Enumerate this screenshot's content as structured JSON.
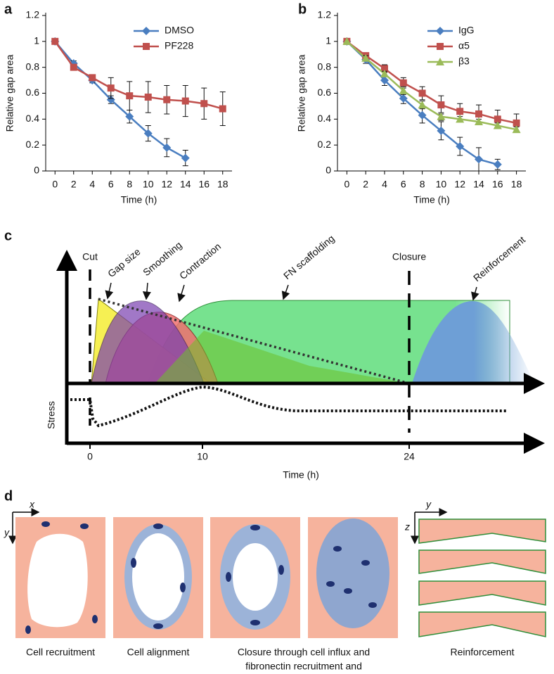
{
  "panel_labels": [
    "a",
    "b",
    "c",
    "d"
  ],
  "chart_data": [
    {
      "type": "line",
      "xlabel": "Time (h)",
      "ylabel": "Relative gap area",
      "xlim": [
        -1,
        19
      ],
      "xticks": [
        0,
        2,
        4,
        6,
        8,
        10,
        12,
        14,
        16,
        18
      ],
      "ylim": [
        0,
        1.2
      ],
      "yticks": [
        0,
        0.2,
        0.4,
        0.6,
        0.8,
        1,
        1.2
      ],
      "legend": "upper right",
      "series": [
        {
          "name": "DMSO",
          "color": "#4a7ec0",
          "marker": "diamond",
          "x": [
            0,
            2,
            4,
            6,
            8,
            10,
            12,
            14
          ],
          "values": [
            1,
            0.83,
            0.7,
            0.55,
            0.42,
            0.29,
            0.18,
            0.1
          ],
          "errors": [
            0,
            0.02,
            0.02,
            0.03,
            0.05,
            0.06,
            0.07,
            0.06
          ]
        },
        {
          "name": "PF228",
          "color": "#c0504d",
          "marker": "square",
          "x": [
            0,
            2,
            4,
            6,
            8,
            10,
            12,
            14,
            16,
            18
          ],
          "values": [
            1,
            0.8,
            0.72,
            0.64,
            0.58,
            0.57,
            0.55,
            0.54,
            0.52,
            0.48
          ],
          "errors": [
            0,
            0.02,
            0.02,
            0.08,
            0.11,
            0.12,
            0.11,
            0.12,
            0.12,
            0.13
          ]
        }
      ]
    },
    {
      "type": "line",
      "xlabel": "Time (h)",
      "ylabel": "Relative gap area",
      "xlim": [
        -1,
        19
      ],
      "xticks": [
        0,
        2,
        4,
        6,
        8,
        10,
        12,
        14,
        16,
        18
      ],
      "ylim": [
        0,
        1.2
      ],
      "yticks": [
        0,
        0.2,
        0.4,
        0.6,
        0.8,
        1,
        1.2
      ],
      "legend": "upper right",
      "series": [
        {
          "name": "IgG",
          "color": "#4a7ec0",
          "marker": "diamond",
          "x": [
            0,
            2,
            4,
            6,
            8,
            10,
            12,
            14,
            16
          ],
          "values": [
            1,
            0.86,
            0.7,
            0.56,
            0.43,
            0.31,
            0.19,
            0.09,
            0.05
          ],
          "errors": [
            0,
            0.03,
            0.04,
            0.04,
            0.06,
            0.07,
            0.07,
            0.09,
            0.04
          ]
        },
        {
          "name": "α5",
          "color": "#c0504d",
          "marker": "square",
          "x": [
            0,
            2,
            4,
            6,
            8,
            10,
            12,
            14,
            16,
            18
          ],
          "values": [
            1,
            0.89,
            0.79,
            0.68,
            0.6,
            0.51,
            0.46,
            0.44,
            0.4,
            0.37
          ],
          "errors": [
            0,
            0.02,
            0.03,
            0.04,
            0.05,
            0.07,
            0.06,
            0.07,
            0.07,
            0.07
          ]
        },
        {
          "name": "β3",
          "color": "#9bbb59",
          "marker": "triangle",
          "x": [
            0,
            2,
            4,
            6,
            8,
            10,
            12,
            14,
            16,
            18
          ],
          "values": [
            1,
            0.87,
            0.75,
            0.62,
            0.51,
            0.42,
            0.4,
            0.38,
            0.35,
            0.32
          ],
          "errors": [
            0,
            0.02,
            0.02,
            0.03,
            0.03,
            0.03,
            0.02,
            0.02,
            0.02,
            0.02
          ]
        }
      ]
    }
  ],
  "diagram": {
    "cut": "Cut",
    "closure": "Closure",
    "phases": [
      "Gap size",
      "Smoothing",
      "Contraction",
      "FN scaffolding",
      "Reinforcement"
    ],
    "y_label": "Stress",
    "x_label": "Time (h)",
    "x_ticks": [
      "0",
      "10",
      "24"
    ]
  },
  "illustration": {
    "axes": [
      "x",
      "y",
      "y",
      "z"
    ],
    "captions": [
      "Cell recruitment",
      "Cell alignment",
      "Closure through cell influx and",
      "fibronectin recruitment and",
      "Reinforcement"
    ]
  }
}
